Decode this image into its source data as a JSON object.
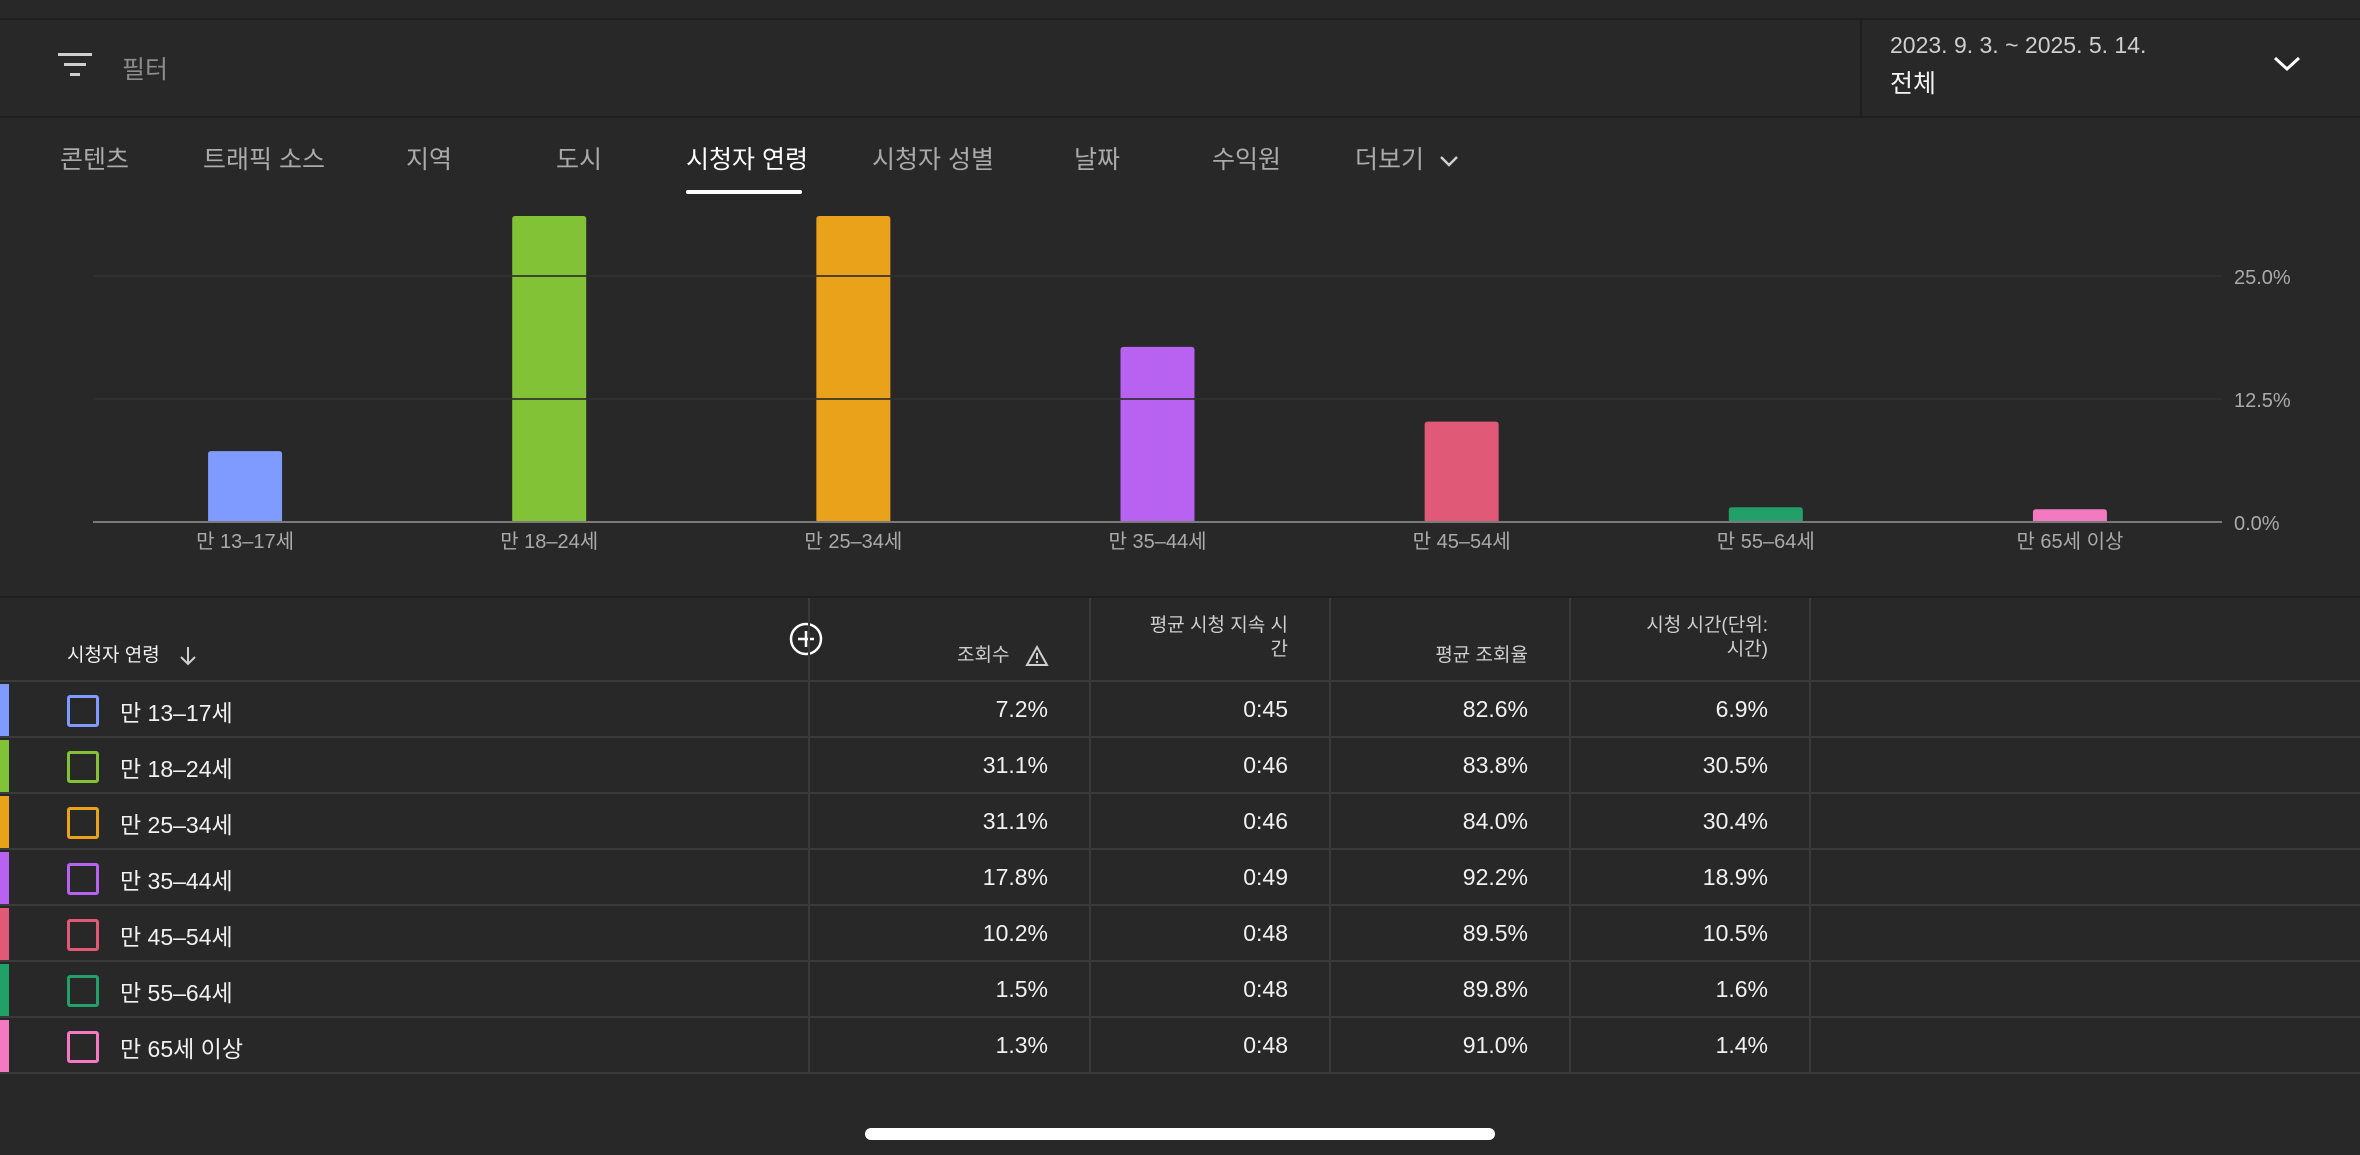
{
  "filter": {
    "placeholder": "필터",
    "icon": "filter-icon"
  },
  "date": {
    "range": "2023. 9. 3. ~ 2025. 5. 14.",
    "scope": "전체"
  },
  "tabs": [
    {
      "label": "콘텐츠"
    },
    {
      "label": "트래픽 소스"
    },
    {
      "label": "지역"
    },
    {
      "label": "도시"
    },
    {
      "label": "시청자 연령",
      "active": true
    },
    {
      "label": "시청자 성별"
    },
    {
      "label": "날짜"
    },
    {
      "label": "수익원"
    },
    {
      "label": "더보기"
    }
  ],
  "chart_data": {
    "type": "bar",
    "categories": [
      "만 13–17세",
      "만 18–24세",
      "만 25–34세",
      "만 35–44세",
      "만 45–54세",
      "만 55–64세",
      "만 65세 이상"
    ],
    "values": [
      7.2,
      31.1,
      31.1,
      17.8,
      10.2,
      1.5,
      1.3
    ],
    "colors": [
      "#7f9bff",
      "#82c236",
      "#eaa21a",
      "#b862f2",
      "#e05a78",
      "#23a06a",
      "#f37ac0"
    ],
    "yticks": [
      "0.0%",
      "12.5%",
      "25.0%"
    ],
    "ytick_values": [
      0,
      12.5,
      25
    ],
    "ylim": [
      0,
      31.1
    ],
    "grid": true
  },
  "table": {
    "headers": {
      "dimension": "시청자 연령",
      "views": "조회수",
      "avg_duration_1": "평균 시청 지속 시",
      "avg_duration_2": "간",
      "avg_pct": "평균 조회율",
      "watch_time_1": "시청 시간(단위:",
      "watch_time_2": "시간)"
    },
    "rows": [
      {
        "name": "만 13–17세",
        "views": "7.2%",
        "duration": "0:45",
        "pct": "82.6%",
        "watch": "6.9%",
        "color": "#7f9bff"
      },
      {
        "name": "만 18–24세",
        "views": "31.1%",
        "duration": "0:46",
        "pct": "83.8%",
        "watch": "30.5%",
        "color": "#82c236"
      },
      {
        "name": "만 25–34세",
        "views": "31.1%",
        "duration": "0:46",
        "pct": "84.0%",
        "watch": "30.4%",
        "color": "#eaa21a"
      },
      {
        "name": "만 35–44세",
        "views": "17.8%",
        "duration": "0:49",
        "pct": "92.2%",
        "watch": "18.9%",
        "color": "#b862f2"
      },
      {
        "name": "만 45–54세",
        "views": "10.2%",
        "duration": "0:48",
        "pct": "89.5%",
        "watch": "10.5%",
        "color": "#e05a78"
      },
      {
        "name": "만 55–64세",
        "views": "1.5%",
        "duration": "0:48",
        "pct": "89.8%",
        "watch": "1.6%",
        "color": "#23a06a"
      },
      {
        "name": "만 65세 이상",
        "views": "1.3%",
        "duration": "0:48",
        "pct": "91.0%",
        "watch": "1.4%",
        "color": "#f37ac0"
      }
    ]
  }
}
